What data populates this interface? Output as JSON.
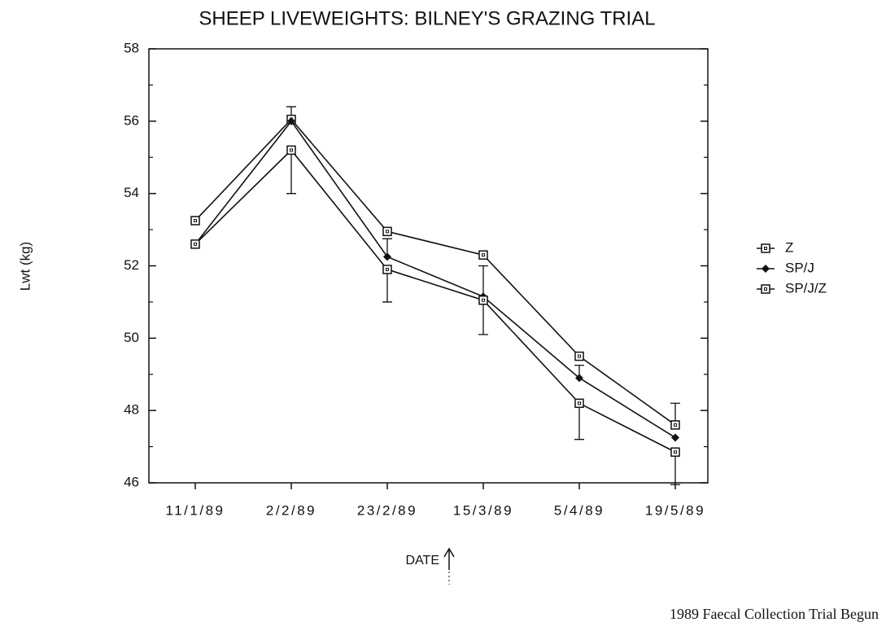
{
  "chart_data": {
    "type": "line",
    "title": "SHEEP LIVEWEIGHTS: BILNEY'S GRAZING TRIAL",
    "x_label": "DATE",
    "y_label": "Lwt (kg)",
    "annotation": "1989 Faecal Collection Trial Begun",
    "categories": [
      "11/1/89",
      "2/2/89",
      "23/2/89",
      "15/3/89",
      "5/4/89",
      "19/5/89"
    ],
    "ylim": [
      46,
      58
    ],
    "yticks": [
      46,
      48,
      50,
      52,
      54,
      56,
      58
    ],
    "yminorticks": [
      47,
      49,
      51,
      53,
      55,
      57
    ],
    "legend": "right",
    "series": [
      {
        "name": "Z",
        "color": "#111",
        "marker": "open-square",
        "error_side": "upper",
        "values": [
          53.25,
          56.05,
          52.95,
          52.3,
          49.5,
          47.6
        ],
        "errors": [
          null,
          0.35,
          null,
          null,
          null,
          0.6
        ]
      },
      {
        "name": "SP/J",
        "color": "#111",
        "marker": "filled-diamond",
        "error_side": "upper",
        "values": [
          52.6,
          56.0,
          52.25,
          51.15,
          48.9,
          47.25
        ],
        "errors": [
          null,
          null,
          0.5,
          0.85,
          0.35,
          null
        ]
      },
      {
        "name": "SP/J/Z",
        "color": "#111",
        "marker": "open-square",
        "error_side": "lower",
        "values": [
          52.6,
          55.2,
          51.9,
          51.05,
          48.2,
          46.85
        ],
        "errors": [
          null,
          1.2,
          0.9,
          0.95,
          1.0,
          0.9
        ]
      }
    ]
  }
}
